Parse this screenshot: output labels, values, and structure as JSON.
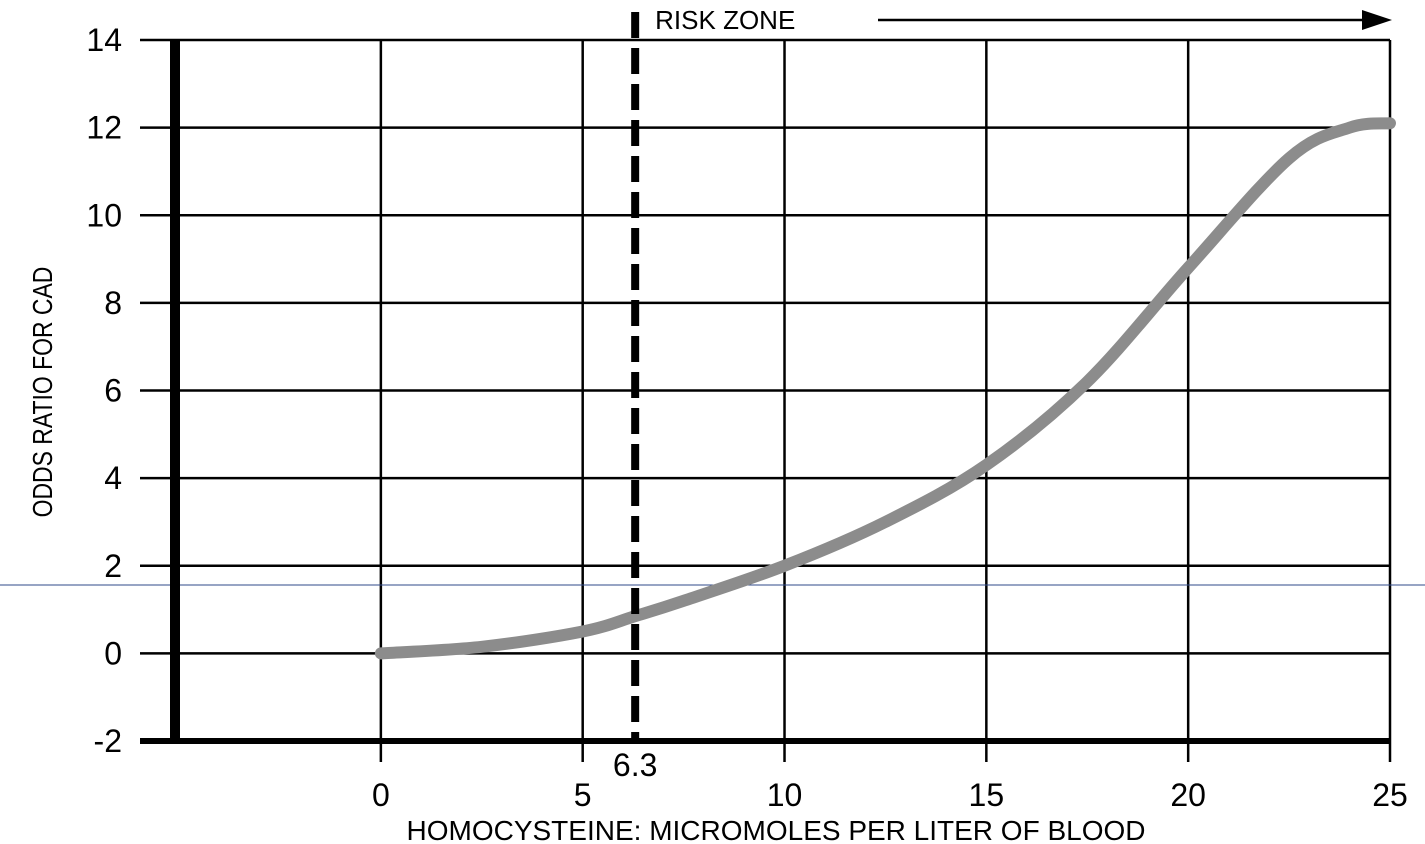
{
  "chart_data": {
    "type": "line",
    "title": "",
    "xlabel": "HOMOCYSTEINE: MICROMOLES PER LITER OF BLOOD",
    "ylabel": "ODDS RATIO FOR CAD",
    "xlim": [
      -5.1,
      25
    ],
    "ylim": [
      -2,
      14
    ],
    "xticks": [
      0,
      5,
      10,
      15,
      20,
      25
    ],
    "yticks": [
      -2,
      0,
      2,
      4,
      6,
      8,
      10,
      12,
      14
    ],
    "grid": true,
    "series": [
      {
        "name": "",
        "color": "#8c8c8c",
        "x": [
          0,
          2.5,
          5,
          6.3,
          7.5,
          10,
          12.5,
          15,
          17.5,
          20,
          22.5,
          24,
          25
        ],
        "y": [
          0,
          0.15,
          0.5,
          0.85,
          1.2,
          2,
          3,
          4.3,
          6.2,
          8.8,
          11.3,
          12,
          12.1
        ]
      }
    ],
    "threshold": {
      "x": 6.3,
      "label": "6.3",
      "style": "dashed"
    },
    "annotation": {
      "text": "RISK ZONE",
      "arrow_to_x": 25
    }
  }
}
